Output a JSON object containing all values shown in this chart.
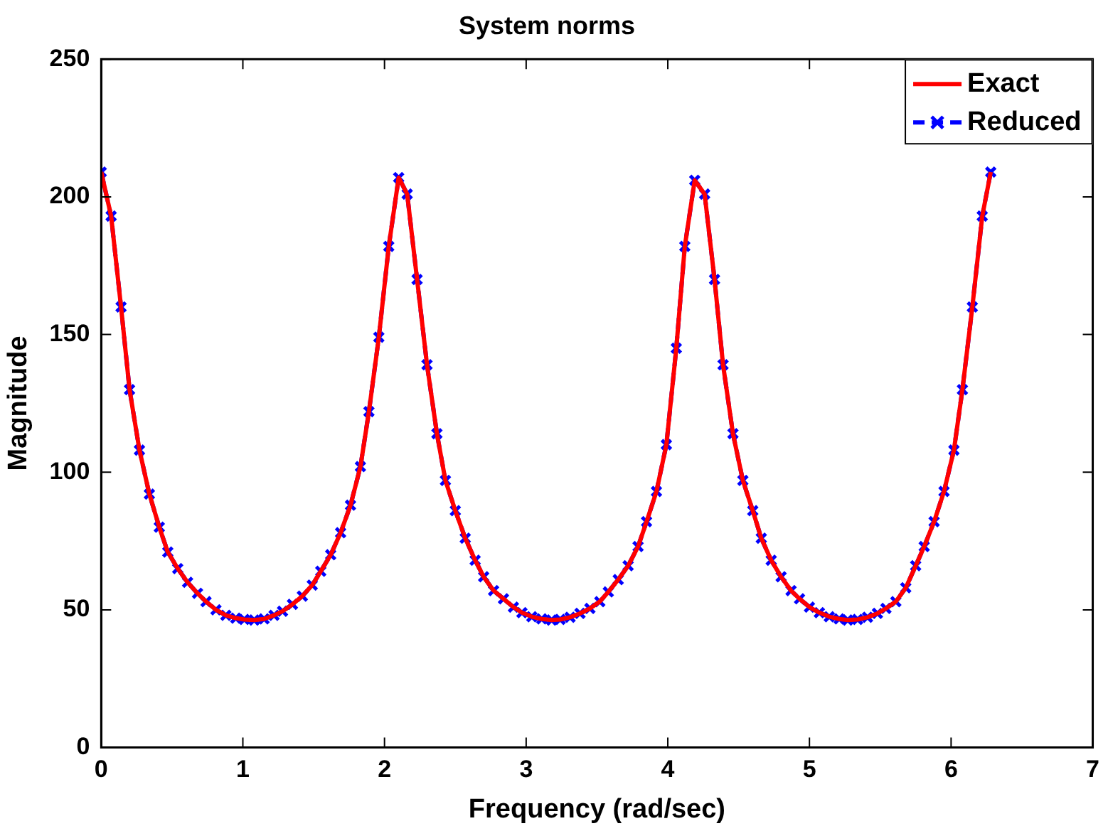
{
  "chart_data": {
    "type": "line",
    "title": "System norms",
    "xlabel": "Frequency (rad/sec)",
    "ylabel": "Magnitude",
    "xlim": [
      0,
      7
    ],
    "xticks": [
      0,
      1,
      2,
      3,
      4,
      5,
      6,
      7
    ],
    "ylim": [
      0,
      250
    ],
    "yticks": [
      0,
      50,
      100,
      150,
      200,
      250
    ],
    "grid": false,
    "legend": "top right",
    "x": [
      0,
      0.07,
      0.14,
      0.2,
      0.27,
      0.34,
      0.41,
      0.47,
      0.54,
      0.61,
      0.68,
      0.74,
      0.81,
      0.88,
      0.95,
      1.01,
      1.08,
      1.15,
      1.22,
      1.28,
      1.35,
      1.42,
      1.49,
      1.55,
      1.62,
      1.69,
      1.76,
      1.83,
      1.89,
      1.96,
      2.03,
      2.1,
      2.16,
      2.23,
      2.3,
      2.37,
      2.43,
      2.5,
      2.57,
      2.64,
      2.7,
      2.77,
      2.84,
      2.91,
      2.97,
      3.04,
      3.11,
      3.18,
      3.24,
      3.31,
      3.38,
      3.45,
      3.52,
      3.58,
      3.65,
      3.72,
      3.79,
      3.85,
      3.92,
      3.99,
      4.06,
      4.12,
      4.19,
      4.26,
      4.33,
      4.39,
      4.46,
      4.53,
      4.6,
      4.66,
      4.73,
      4.8,
      4.87,
      4.93,
      5.0,
      5.07,
      5.14,
      5.21,
      5.27,
      5.34,
      5.41,
      5.48,
      5.54,
      5.61,
      5.68,
      5.75,
      5.81,
      5.88,
      5.95,
      6.02,
      6.08,
      6.15,
      6.22,
      6.28
    ],
    "series": [
      {
        "name": "Exact",
        "color": "#ff0000",
        "line_style": "solid",
        "marker": "none",
        "values": [
          209,
          193,
          160,
          130,
          108,
          92,
          80,
          71,
          65,
          60,
          56,
          53,
          50,
          48,
          47,
          46.5,
          46.3,
          46.7,
          48,
          49.5,
          52,
          55,
          59,
          64,
          70,
          78,
          88,
          102,
          122,
          149,
          182,
          207,
          201,
          170,
          139,
          114,
          97,
          86,
          76,
          68,
          62,
          57,
          54,
          51,
          49,
          47.5,
          46.7,
          46.3,
          46.5,
          47.3,
          48.7,
          50.5,
          53,
          56.5,
          61,
          66,
          73,
          82,
          93,
          110,
          145,
          182,
          206,
          201,
          170,
          139,
          114,
          97,
          86,
          76,
          68,
          62,
          57,
          54,
          51,
          49,
          47.5,
          46.7,
          46.3,
          46.5,
          47.3,
          48.7,
          50.5,
          53,
          58,
          66,
          73,
          82,
          93,
          108,
          130,
          160,
          193,
          209
        ]
      },
      {
        "name": "Reduced",
        "color": "#0000ff",
        "line_style": "dashed",
        "marker": "cross",
        "values": [
          209,
          193,
          160,
          130,
          108,
          92,
          80,
          71,
          65,
          60,
          56,
          53,
          50,
          48,
          47,
          46.5,
          46.3,
          46.7,
          48,
          49.5,
          52,
          55,
          59,
          64,
          70,
          78,
          88,
          102,
          122,
          149,
          182,
          207,
          201,
          170,
          139,
          114,
          97,
          86,
          76,
          68,
          62,
          57,
          54,
          51,
          49,
          47.5,
          46.7,
          46.3,
          46.5,
          47.3,
          48.7,
          50.5,
          53,
          56.5,
          61,
          66,
          73,
          82,
          93,
          110,
          145,
          182,
          206,
          201,
          170,
          139,
          114,
          97,
          86,
          76,
          68,
          62,
          57,
          54,
          51,
          49,
          47.5,
          46.7,
          46.3,
          46.5,
          47.3,
          48.7,
          50.5,
          53,
          58,
          66,
          73,
          82,
          93,
          108,
          130,
          160,
          193,
          209
        ]
      }
    ]
  }
}
